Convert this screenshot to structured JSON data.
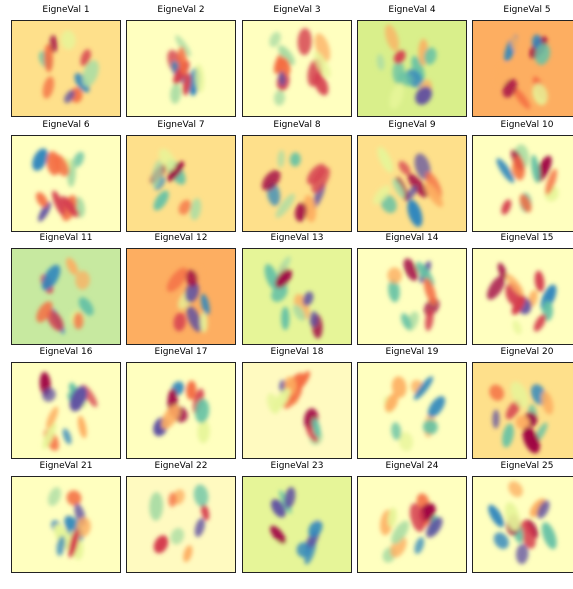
{
  "figure": {
    "background": "#ffffff",
    "colormap": "Spectral",
    "colormap_stops": [
      "#9e0142",
      "#d53e4f",
      "#f46d43",
      "#fdae61",
      "#fee08b",
      "#ffffbf",
      "#e6f598",
      "#abdda4",
      "#66c2a5",
      "#3288bd",
      "#5e4fa2"
    ],
    "panels": [
      {
        "title": "EigneVal 1",
        "background": "#fee08b",
        "pattern": "ring"
      },
      {
        "title": "EigneVal 2",
        "background": "#ffffbf",
        "pattern": "stripes"
      },
      {
        "title": "EigneVal 3",
        "background": "#ffffbf",
        "pattern": "blobs"
      },
      {
        "title": "EigneVal 4",
        "background": "#d9ef8b",
        "pattern": "swirl"
      },
      {
        "title": "EigneVal 5",
        "background": "#fdae61",
        "pattern": "ring"
      },
      {
        "title": "EigneVal 6",
        "background": "#ffffbf",
        "pattern": "blobs"
      },
      {
        "title": "EigneVal 7",
        "background": "#fee08b",
        "pattern": "stripes"
      },
      {
        "title": "EigneVal 8",
        "background": "#fee08b",
        "pattern": "ring"
      },
      {
        "title": "EigneVal 9",
        "background": "#fee08b",
        "pattern": "swirl"
      },
      {
        "title": "EigneVal 10",
        "background": "#ffffbf",
        "pattern": "blobs"
      },
      {
        "title": "EigneVal 11",
        "background": "#c7e9a0",
        "pattern": "ring"
      },
      {
        "title": "EigneVal 12",
        "background": "#fdae61",
        "pattern": "stripes"
      },
      {
        "title": "EigneVal 13",
        "background": "#e6f598",
        "pattern": "blobs"
      },
      {
        "title": "EigneVal 14",
        "background": "#ffffbf",
        "pattern": "ring"
      },
      {
        "title": "EigneVal 15",
        "background": "#ffffbf",
        "pattern": "swirl"
      },
      {
        "title": "EigneVal 16",
        "background": "#ffffbf",
        "pattern": "blobs"
      },
      {
        "title": "EigneVal 17",
        "background": "#ffffbf",
        "pattern": "stripes"
      },
      {
        "title": "EigneVal 18",
        "background": "#fffac0",
        "pattern": "blobs"
      },
      {
        "title": "EigneVal 19",
        "background": "#ffffbf",
        "pattern": "ring"
      },
      {
        "title": "EigneVal 20",
        "background": "#fee08b",
        "pattern": "swirl"
      },
      {
        "title": "EigneVal 21",
        "background": "#ffffbf",
        "pattern": "blobs"
      },
      {
        "title": "EigneVal 22",
        "background": "#fffac0",
        "pattern": "stripes"
      },
      {
        "title": "EigneVal 23",
        "background": "#e6f598",
        "pattern": "ring"
      },
      {
        "title": "EigneVal 24",
        "background": "#ffffbf",
        "pattern": "blobs"
      },
      {
        "title": "EigneVal 25",
        "background": "#ffffbf",
        "pattern": "swirl"
      }
    ]
  }
}
